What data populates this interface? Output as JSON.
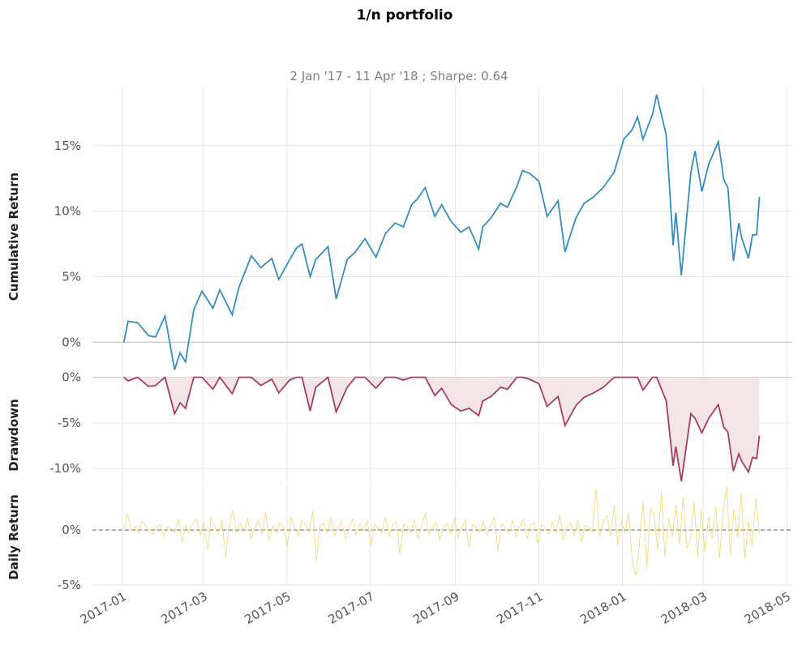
{
  "figure": {
    "title": "1/n portfolio",
    "subtitle": "2 Jan '17 - 11 Apr '18 ;  Sharpe: 0.64"
  },
  "chart_data": [
    {
      "type": "line",
      "panel": "cumulative_return",
      "ylabel": "Cumulative Return",
      "yticks": [
        0,
        5,
        10,
        15
      ],
      "ytick_labels": [
        "0%",
        "5%",
        "10%",
        "15%"
      ],
      "ylim": [
        -2.2,
        19.5
      ],
      "color": "#348dc1",
      "grid": true,
      "x": [
        "2017-01-02",
        "2017-01-05",
        "2017-01-12",
        "2017-01-20",
        "2017-01-25",
        "2017-02-01",
        "2017-02-08",
        "2017-02-12",
        "2017-02-16",
        "2017-02-22",
        "2017-02-28",
        "2017-03-08",
        "2017-03-13",
        "2017-03-22",
        "2017-03-27",
        "2017-04-05",
        "2017-04-12",
        "2017-04-20",
        "2017-04-25",
        "2017-05-03",
        "2017-05-08",
        "2017-05-12",
        "2017-05-18",
        "2017-05-22",
        "2017-05-31",
        "2017-06-06",
        "2017-06-14",
        "2017-06-20",
        "2017-06-27",
        "2017-07-05",
        "2017-07-12",
        "2017-07-19",
        "2017-07-25",
        "2017-07-31",
        "2017-08-04",
        "2017-08-10",
        "2017-08-17",
        "2017-08-22",
        "2017-08-29",
        "2017-09-05",
        "2017-09-11",
        "2017-09-18",
        "2017-09-21",
        "2017-09-27",
        "2017-10-04",
        "2017-10-09",
        "2017-10-16",
        "2017-10-20",
        "2017-10-25",
        "2017-11-01",
        "2017-11-07",
        "2017-11-15",
        "2017-11-20",
        "2017-11-28",
        "2017-12-04",
        "2017-12-11",
        "2017-12-18",
        "2017-12-26",
        "2018-01-02",
        "2018-01-08",
        "2018-01-12",
        "2018-01-16",
        "2018-01-23",
        "2018-01-26",
        "2018-02-02",
        "2018-02-07",
        "2018-02-09",
        "2018-02-13",
        "2018-02-20",
        "2018-02-23",
        "2018-02-28",
        "2018-03-05",
        "2018-03-12",
        "2018-03-16",
        "2018-03-19",
        "2018-03-23",
        "2018-03-27",
        "2018-03-29",
        "2018-04-03",
        "2018-04-06",
        "2018-04-09",
        "2018-04-11"
      ],
      "values": [
        0.0,
        1.6,
        1.5,
        0.5,
        0.4,
        2.0,
        -2.1,
        -0.8,
        -1.5,
        2.5,
        3.9,
        2.6,
        4.0,
        2.1,
        4.2,
        6.6,
        5.7,
        6.4,
        4.8,
        6.3,
        7.2,
        7.5,
        5.0,
        6.3,
        7.3,
        3.3,
        6.3,
        6.9,
        7.9,
        6.5,
        8.3,
        9.1,
        8.8,
        10.5,
        10.9,
        11.8,
        9.6,
        10.5,
        9.2,
        8.4,
        8.8,
        7.1,
        8.8,
        9.5,
        10.6,
        10.3,
        11.9,
        13.1,
        12.9,
        12.3,
        9.6,
        10.8,
        6.9,
        9.5,
        10.6,
        11.1,
        11.8,
        13.0,
        15.5,
        16.2,
        17.2,
        15.5,
        17.4,
        18.9,
        15.8,
        7.4,
        9.9,
        5.1,
        13.0,
        14.6,
        11.5,
        13.6,
        15.3,
        12.4,
        11.8,
        6.2,
        9.1,
        8.0,
        6.4,
        8.2,
        8.2,
        11.1
      ]
    },
    {
      "type": "area",
      "panel": "drawdown",
      "ylabel": "Drawdown",
      "yticks": [
        0,
        -5,
        -10
      ],
      "ytick_labels": [
        "0%",
        "-5%",
        "-10%"
      ],
      "ylim": [
        -11.5,
        0.5
      ],
      "color": "#a63d5c",
      "fill_color": "#f3e4e8",
      "grid": true,
      "x": [
        "2017-01-02",
        "2017-01-05",
        "2017-01-12",
        "2017-01-20",
        "2017-01-25",
        "2017-02-01",
        "2017-02-08",
        "2017-02-12",
        "2017-02-16",
        "2017-02-22",
        "2017-02-28",
        "2017-03-08",
        "2017-03-13",
        "2017-03-22",
        "2017-03-27",
        "2017-04-05",
        "2017-04-12",
        "2017-04-20",
        "2017-04-25",
        "2017-05-03",
        "2017-05-08",
        "2017-05-12",
        "2017-05-18",
        "2017-05-22",
        "2017-05-31",
        "2017-06-06",
        "2017-06-14",
        "2017-06-20",
        "2017-06-27",
        "2017-07-05",
        "2017-07-12",
        "2017-07-19",
        "2017-07-25",
        "2017-07-31",
        "2017-08-04",
        "2017-08-10",
        "2017-08-17",
        "2017-08-22",
        "2017-08-29",
        "2017-09-05",
        "2017-09-11",
        "2017-09-18",
        "2017-09-21",
        "2017-09-27",
        "2017-10-04",
        "2017-10-09",
        "2017-10-16",
        "2017-10-20",
        "2017-10-25",
        "2017-11-01",
        "2017-11-07",
        "2017-11-15",
        "2017-11-20",
        "2017-11-28",
        "2017-12-04",
        "2017-12-11",
        "2017-12-18",
        "2017-12-26",
        "2018-01-02",
        "2018-01-08",
        "2018-01-12",
        "2018-01-16",
        "2018-01-23",
        "2018-01-26",
        "2018-02-02",
        "2018-02-07",
        "2018-02-09",
        "2018-02-13",
        "2018-02-20",
        "2018-02-23",
        "2018-02-28",
        "2018-03-05",
        "2018-03-12",
        "2018-03-16",
        "2018-03-19",
        "2018-03-23",
        "2018-03-27",
        "2018-03-29",
        "2018-04-03",
        "2018-04-06",
        "2018-04-09",
        "2018-04-11"
      ],
      "values": [
        0.0,
        -0.4,
        0.0,
        -1.0,
        -0.9,
        0.0,
        -4.0,
        -2.8,
        -3.4,
        0.0,
        0.0,
        -1.3,
        0.0,
        -1.8,
        0.0,
        0.0,
        -0.9,
        -0.2,
        -1.7,
        -0.3,
        0.0,
        0.0,
        -3.7,
        -1.1,
        0.0,
        -3.8,
        -1.1,
        0.0,
        0.0,
        -1.2,
        0.0,
        0.0,
        -0.3,
        0.0,
        0.0,
        0.0,
        -2.0,
        -1.2,
        -3.0,
        -3.7,
        -3.4,
        -4.2,
        -2.6,
        -2.1,
        -1.1,
        -1.3,
        0.0,
        0.0,
        -0.2,
        -0.7,
        -3.2,
        -2.1,
        -5.3,
        -3.1,
        -2.2,
        -1.7,
        -1.1,
        0.0,
        0.0,
        0.0,
        0.0,
        -1.4,
        0.0,
        0.0,
        -2.6,
        -9.7,
        -7.6,
        -11.4,
        -4.0,
        -4.5,
        -6.1,
        -4.5,
        -3.0,
        -5.5,
        -6.0,
        -10.3,
        -8.4,
        -9.2,
        -10.4,
        -8.8,
        -8.9,
        -6.4
      ]
    },
    {
      "type": "line",
      "panel": "daily_return",
      "ylabel": "Daily Return",
      "yticks": [
        0,
        -5
      ],
      "ytick_labels": [
        "0%",
        "-5%"
      ],
      "ylim": [
        -5.0,
        4.2
      ],
      "color": "#f7d572",
      "zero_line": "dashed",
      "grid": true,
      "x_start": "2017-01-02",
      "x_end": "2018-04-11",
      "values": [
        0.1,
        1.5,
        -0.1,
        0.3,
        -0.3,
        0.8,
        0.4,
        -0.2,
        -0.4,
        0.2,
        0.5,
        -0.6,
        0.3,
        0.1,
        -0.2,
        0.9,
        -1.1,
        0.4,
        -0.3,
        0.6,
        1.0,
        -0.5,
        0.7,
        -1.8,
        1.2,
        0.3,
        -0.4,
        0.9,
        -2.5,
        0.5,
        1.8,
        -0.3,
        0.6,
        -0.2,
        1.1,
        -0.8,
        0.2,
        0.9,
        -0.4,
        1.6,
        -1.0,
        0.4,
        -0.3,
        0.7,
        0.2,
        -1.5,
        1.2,
        0.3,
        -0.6,
        0.9,
        0.5,
        -0.2,
        1.8,
        -2.8,
        0.4,
        0.6,
        -0.3,
        1.1,
        -0.5,
        0.2,
        0.8,
        -0.9,
        0.3,
        1.0,
        -0.4,
        0.6,
        -0.1,
        0.9,
        -1.4,
        0.5,
        0.2,
        -0.3,
        1.2,
        -0.6,
        0.4,
        0.8,
        -2.2,
        0.6,
        0.3,
        -0.2,
        0.9,
        -0.8,
        0.4,
        1.5,
        -0.5,
        0.2,
        0.7,
        -1.0,
        0.3,
        0.6,
        -0.4,
        1.1,
        -0.7,
        0.2,
        0.9,
        -1.6,
        0.5,
        0.3,
        -0.2,
        0.8,
        -0.5,
        0.4,
        1.2,
        -1.9,
        0.6,
        0.2,
        -0.3,
        0.9,
        -0.6,
        0.3,
        1.0,
        -0.8,
        0.4,
        0.7,
        -1.2,
        0.5,
        0.2,
        -0.4,
        0.8,
        -0.3,
        1.4,
        -0.9,
        0.3,
        0.6,
        -0.5,
        0.9,
        -1.1,
        0.4,
        0.2,
        -0.2,
        3.8,
        -0.6,
        0.8,
        1.3,
        -0.5,
        2.2,
        -1.4,
        0.9,
        -0.3,
        1.6,
        -2.9,
        -4.2,
        -1.1,
        2.6,
        -3.5,
        2.0,
        1.4,
        -1.8,
        3.6,
        -2.4,
        1.0,
        -0.6,
        2.3,
        -1.3,
        3.0,
        -1.6,
        -0.9,
        2.6,
        -2.4,
        1.8,
        -2.0,
        1.2,
        -0.8,
        2.1,
        -2.6,
        1.5,
        4.0,
        -2.2,
        1.9,
        -0.7,
        3.4,
        -2.6,
        0.8,
        -1.4,
        2.9,
        -0.4
      ]
    }
  ],
  "x_axis": {
    "ticks": [
      "2017-01",
      "2017-03",
      "2017-05",
      "2017-07",
      "2017-09",
      "2017-11",
      "2018-01",
      "2018-03",
      "2018-05"
    ],
    "range_start": "2016-12-10",
    "range_end": "2018-05-05"
  }
}
